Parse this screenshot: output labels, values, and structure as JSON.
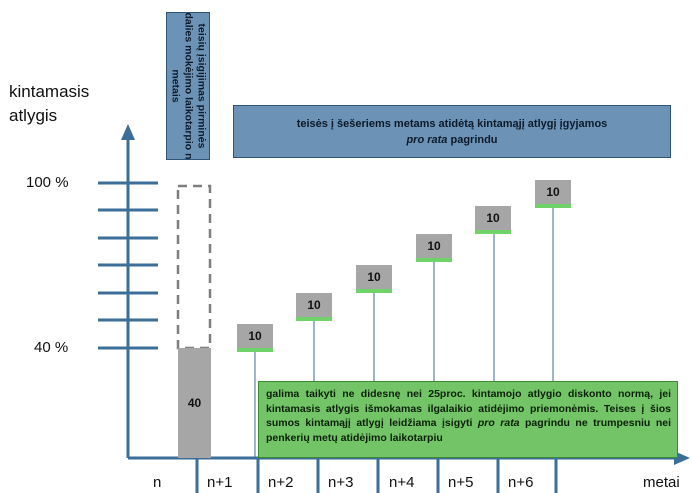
{
  "y_axis": {
    "label_line1": "kintamasis",
    "label_line2": "atlygis",
    "tick_top": "100 %",
    "tick_mid": "40 %"
  },
  "x_axis": {
    "label": "metai",
    "ticks": [
      "n",
      "n+1",
      "n+2",
      "n+3",
      "n+4",
      "n+5",
      "n+6"
    ]
  },
  "first_bar": {
    "value_label": "40"
  },
  "step_labels": [
    "10",
    "10",
    "10",
    "10",
    "10",
    "10"
  ],
  "vertical_box": {
    "text": "teisių įsigijimas pirminės dalies mokėjimo laikotarpio n metais"
  },
  "top_box": {
    "line1": "teisės į šešeriems metams atidėtą kintamąjį atlygį įgyjamos",
    "line2_italic": "pro rata",
    "line2_rest": " pagrindu"
  },
  "green_box": {
    "part1": "galima taikyti ne didesnę nei 25proc. kintamojo atlygio diskonto normą, jei kintamasis atlygis išmokamas ilgalaikio atidėjimo priemonėmis. Teises į šios sumos kintamąjį atlygį leidžiama įsigyti ",
    "italic": "pro rata",
    "part2": " pagrindu ne trumpesniu nei penkerių metų atidėjimo laikotarpiu"
  },
  "colors": {
    "axis": "#3b6e99",
    "blue_box": "#6c93b5",
    "green_box": "#72c466",
    "bar_grey": "#a6a6a6",
    "step_accent": "#6fd36a"
  }
}
